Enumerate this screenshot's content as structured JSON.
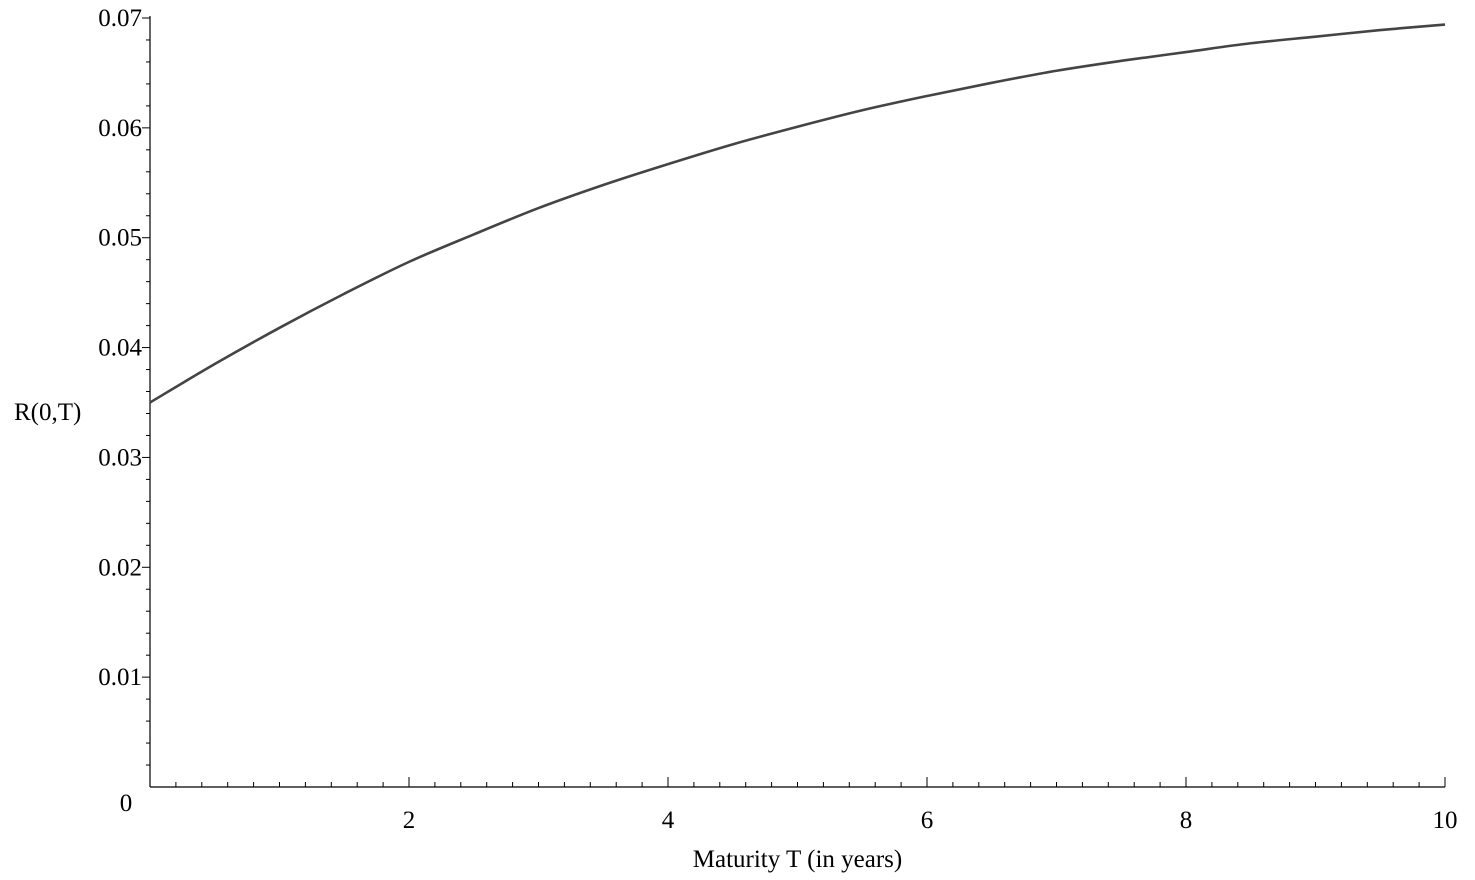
{
  "chart_data": {
    "type": "line",
    "title": "",
    "xlabel": "Maturity T (in years)",
    "ylabel": "R(0,T)",
    "xlim": [
      0,
      10
    ],
    "ylim": [
      0,
      0.07
    ],
    "grid": false,
    "x_ticks": [
      2,
      4,
      6,
      8,
      10
    ],
    "x_tick_labels": [
      "2",
      "4",
      "6",
      "8",
      "10"
    ],
    "y_ticks": [
      0.01,
      0.02,
      0.03,
      0.04,
      0.05,
      0.06,
      0.07
    ],
    "y_tick_labels": [
      "0.01",
      "0.02",
      "0.03",
      "0.04",
      "0.05",
      "0.06",
      "0.07"
    ],
    "origin_label": "0",
    "series": [
      {
        "color": "#444444",
        "x": [
          0,
          0.5,
          1,
          1.5,
          2,
          2.5,
          3,
          3.5,
          4,
          4.5,
          5,
          5.5,
          6,
          6.5,
          7,
          7.5,
          8,
          8.5,
          9,
          9.5,
          10
        ],
        "y": [
          0.035,
          0.0385,
          0.0418,
          0.0449,
          0.0478,
          0.0503,
          0.0527,
          0.0548,
          0.0567,
          0.0585,
          0.0601,
          0.0616,
          0.0629,
          0.0641,
          0.0652,
          0.0661,
          0.0669,
          0.0677,
          0.0683,
          0.0689,
          0.0694
        ]
      }
    ]
  }
}
